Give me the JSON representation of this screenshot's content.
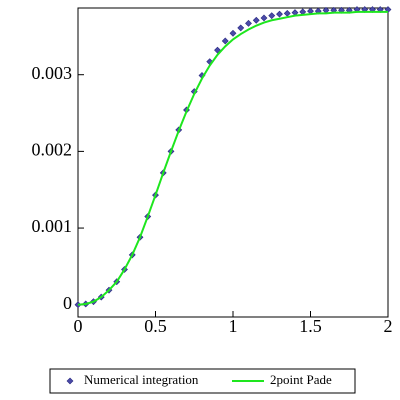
{
  "chart_data": {
    "type": "line",
    "x": [
      0,
      0.05,
      0.1,
      0.15,
      0.2,
      0.25,
      0.3,
      0.35,
      0.4,
      0.45,
      0.5,
      0.55,
      0.6,
      0.65,
      0.7,
      0.75,
      0.8,
      0.85,
      0.9,
      0.95,
      1,
      1.05,
      1.1,
      1.15,
      1.2,
      1.25,
      1.3,
      1.35,
      1.4,
      1.45,
      1.5,
      1.55,
      1.6,
      1.65,
      1.7,
      1.75,
      1.8,
      1.85,
      1.9,
      1.95,
      2
    ],
    "series": [
      {
        "name": "Numerical integration",
        "color": "#4a4aa8",
        "mode": "markers",
        "values": [
          0,
          1e-05,
          4e-05,
          0.0001,
          0.00019,
          0.0003,
          0.00046,
          0.00065,
          0.00088,
          0.00115,
          0.00143,
          0.00172,
          0.002,
          0.00228,
          0.00254,
          0.00278,
          0.00299,
          0.00317,
          0.00332,
          0.00344,
          0.00354,
          0.00361,
          0.00367,
          0.00371,
          0.00374,
          0.00377,
          0.00379,
          0.0038,
          0.00381,
          0.00382,
          0.00383,
          0.00383,
          0.00384,
          0.00384,
          0.00384,
          0.00384,
          0.00385,
          0.00385,
          0.00385,
          0.00385,
          0.00385
        ]
      },
      {
        "name": "2point Pade",
        "color": "#1ee61e",
        "mode": "lines",
        "values": [
          0,
          1e-05,
          4e-05,
          0.0001,
          0.00019,
          0.0003,
          0.00046,
          0.00065,
          0.00088,
          0.00115,
          0.00143,
          0.00172,
          0.002,
          0.00227,
          0.00252,
          0.00275,
          0.00295,
          0.00312,
          0.00326,
          0.00337,
          0.00346,
          0.00353,
          0.00359,
          0.00364,
          0.00368,
          0.00371,
          0.00373,
          0.00375,
          0.00377,
          0.00378,
          0.00379,
          0.0038,
          0.0038,
          0.00381,
          0.00381,
          0.00381,
          0.00382,
          0.00382,
          0.00382,
          0.00382,
          0.00382
        ]
      }
    ],
    "xlim": [
      0,
      2
    ],
    "xticks": [
      0,
      0.5,
      1,
      1.5,
      2
    ],
    "ylim": [
      -0.00016,
      0.00387
    ],
    "yticks": [
      0,
      0.001,
      0.002,
      0.003
    ]
  }
}
